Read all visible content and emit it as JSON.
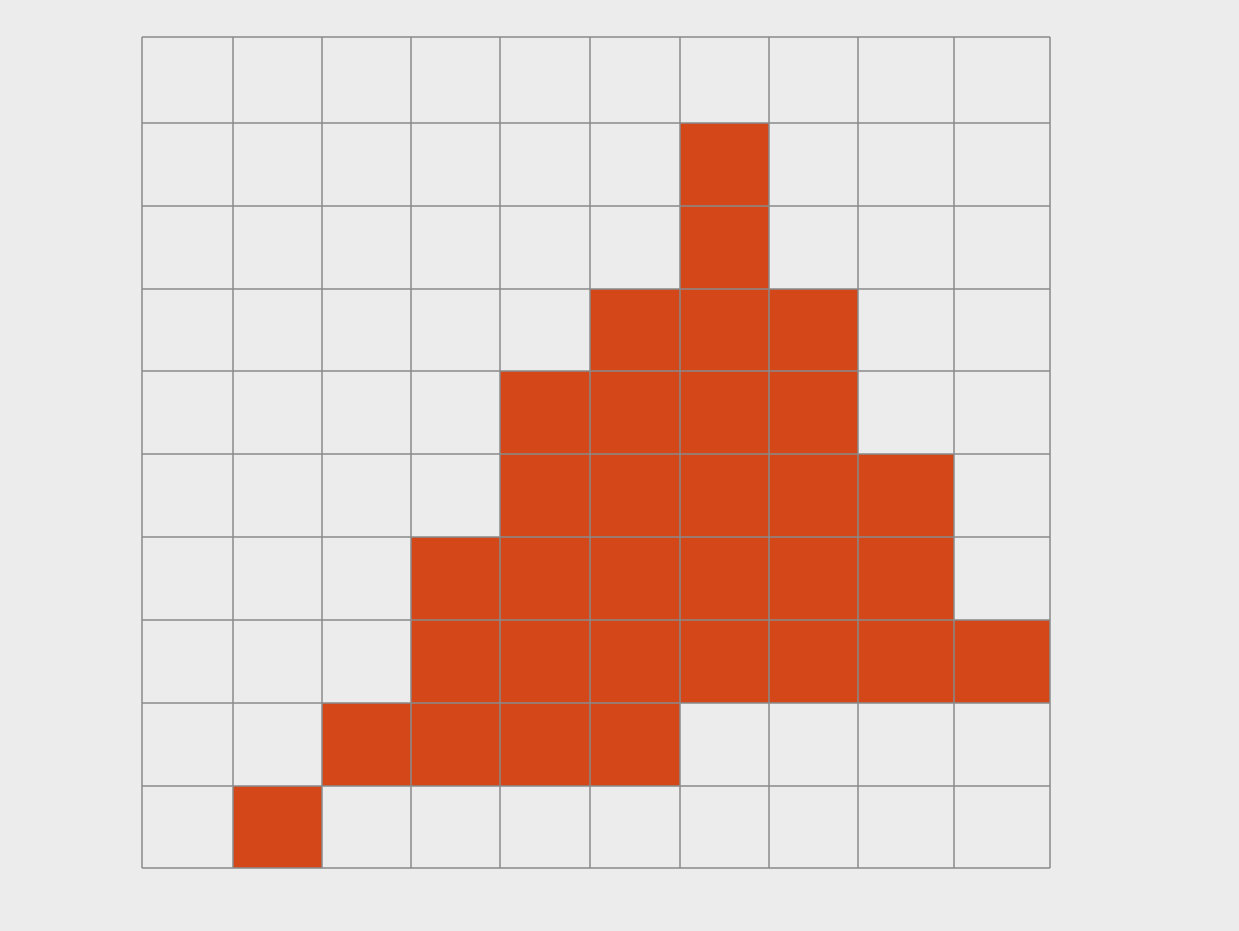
{
  "diagram": {
    "rows": 10,
    "cols": 10,
    "fill_color": "#d44718",
    "empty_color": "#ececec",
    "line_color": "#8a8a8a",
    "filled_cells": [
      [
        1,
        6
      ],
      [
        2,
        6
      ],
      [
        3,
        5
      ],
      [
        3,
        6
      ],
      [
        3,
        7
      ],
      [
        4,
        4
      ],
      [
        4,
        5
      ],
      [
        4,
        6
      ],
      [
        4,
        7
      ],
      [
        5,
        4
      ],
      [
        5,
        5
      ],
      [
        5,
        6
      ],
      [
        5,
        7
      ],
      [
        5,
        8
      ],
      [
        6,
        3
      ],
      [
        6,
        4
      ],
      [
        6,
        5
      ],
      [
        6,
        6
      ],
      [
        6,
        7
      ],
      [
        6,
        8
      ],
      [
        7,
        3
      ],
      [
        7,
        4
      ],
      [
        7,
        5
      ],
      [
        7,
        6
      ],
      [
        7,
        7
      ],
      [
        7,
        8
      ],
      [
        7,
        9
      ],
      [
        8,
        2
      ],
      [
        8,
        3
      ],
      [
        8,
        4
      ],
      [
        8,
        5
      ],
      [
        9,
        1
      ]
    ]
  },
  "caption": {
    "text": ""
  }
}
